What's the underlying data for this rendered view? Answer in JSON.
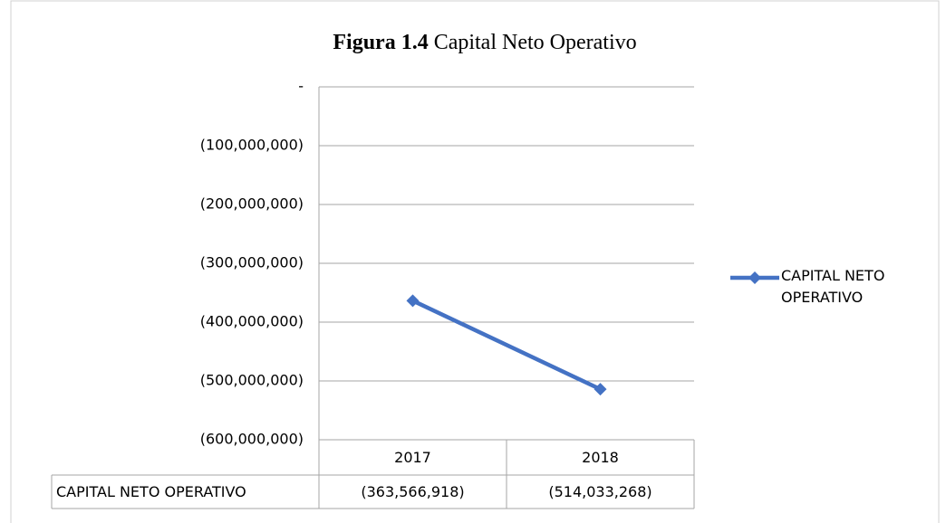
{
  "chart_data": {
    "type": "line",
    "title_label": "Figura 1.4",
    "title": "Capital Neto Operativo",
    "categories": [
      "2017",
      "2018"
    ],
    "series": [
      {
        "name": "CAPITAL NETO OPERATIVO",
        "color": "#4472c4",
        "values": [
          -363566918,
          -514033268
        ],
        "value_labels": [
          "(363,566,918)",
          "(514,033,268)"
        ]
      }
    ],
    "ylim": [
      -600000000,
      0
    ],
    "yticks": [
      {
        "value": -600000000,
        "label": "(600,000,000)"
      },
      {
        "value": -500000000,
        "label": "(500,000,000)"
      },
      {
        "value": -400000000,
        "label": "(400,000,000)"
      },
      {
        "value": -300000000,
        "label": "(300,000,000)"
      },
      {
        "value": -200000000,
        "label": "(200,000,000)"
      },
      {
        "value": -100000000,
        "label": "(100,000,000)"
      },
      {
        "value": 0,
        "label": "-"
      }
    ],
    "grid": true,
    "legend": "right"
  }
}
